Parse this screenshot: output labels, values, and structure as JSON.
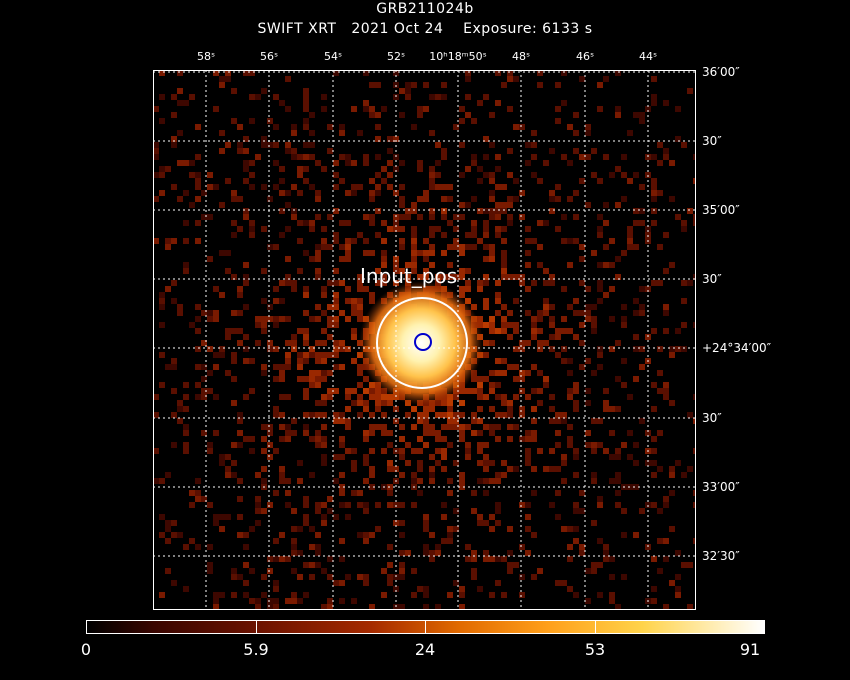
{
  "header": {
    "title": "GRB211024b",
    "subtitle": "SWIFT XRT   2021 Oct 24    Exposure: 6133 s"
  },
  "ra_ticks": [
    "58ˢ",
    "56ˢ",
    "54ˢ",
    "52ˢ",
    "10ʰ18ᵐ50ˢ",
    "48ˢ",
    "46ˢ",
    "44ˢ"
  ],
  "dec_ticks": [
    "36′00″",
    "30″",
    "35′00″",
    "30″",
    "+24°34′00″",
    "30″",
    "33′00″",
    "32′30″"
  ],
  "source": {
    "label": "Input_pos"
  },
  "colorbar": {
    "labels": [
      "0",
      "5.9",
      "24",
      "53",
      "91"
    ]
  },
  "colors": {
    "background": "#000000",
    "grid": "#ffffff",
    "ring": "#ffffff",
    "marker": "#0000cc"
  }
}
